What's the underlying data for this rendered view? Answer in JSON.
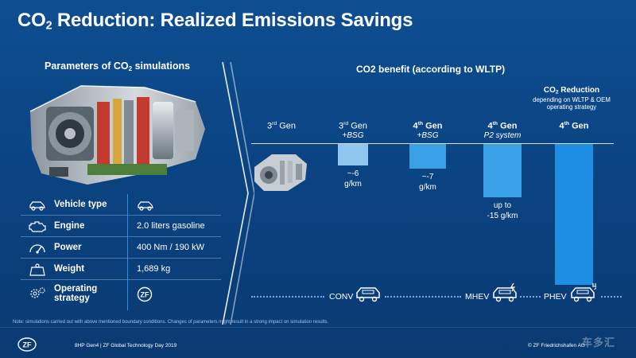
{
  "slide": {
    "title_main": "CO",
    "title_sub": "2",
    "title_rest": " Reduction: Realized Emissions Savings"
  },
  "left": {
    "title_main": "Parameters of CO",
    "title_sub": "2",
    "title_rest": " simulations",
    "params": [
      {
        "label": "Vehicle type",
        "value": "",
        "icon": "car-outline-icon"
      },
      {
        "label": "Engine",
        "value": "2.0 liters gasoline",
        "icon": "engine-icon"
      },
      {
        "label": "Power",
        "value": "400 Nm / 190 kW",
        "icon": "gauge-icon"
      },
      {
        "label": "Weight",
        "value": "1,689 kg",
        "icon": "weight-icon"
      },
      {
        "label": "Operating strategy",
        "value": "",
        "icon": "gears-icon"
      }
    ]
  },
  "chart": {
    "title": "CO2 benefit (according to WLTP)",
    "reduction_title_main": "CO",
    "reduction_title_sub": "2",
    "reduction_title_rest": " Reduction",
    "reduction_subtitle": "depending on WLTP & OEM operating strategy",
    "columns": [
      {
        "gen": "3",
        "sup": "rd",
        "word": " Gen",
        "sub": "",
        "bold": false
      },
      {
        "gen": "3",
        "sup": "rd",
        "word": " Gen",
        "sub": "+BSG",
        "bold": false
      },
      {
        "gen": "4",
        "sup": "th",
        "word": " Gen",
        "sub": "+BSG",
        "bold": true
      },
      {
        "gen": "4",
        "sup": "th",
        "word": " Gen",
        "sub": "P2 system",
        "bold": true
      },
      {
        "gen": "4",
        "sup": "th",
        "word": " Gen",
        "sub": "",
        "bold": true
      }
    ],
    "bar_labels": [
      "~-6\ng/km",
      "~-7\ng/km",
      "up to\n-15 g/km"
    ],
    "categories": [
      "CONV",
      "MHEV",
      "PHEV"
    ],
    "colors": {
      "bar_light": "#8ec6ee",
      "bar_mid": "#3aa0e6",
      "bar_dark": "#1e8fe2",
      "accent": "#2d8ee8"
    }
  },
  "chart_data": {
    "type": "bar",
    "categories": [
      "3rd Gen",
      "3rd Gen +BSG",
      "4th Gen +BSG",
      "4th Gen P2 system",
      "4th Gen"
    ],
    "values": [
      0,
      -6,
      -7,
      -15,
      null
    ],
    "title": "CO2 benefit (according to WLTP)",
    "xlabel": "",
    "ylabel": "",
    "annotations": [
      "~-6 g/km",
      "~-7 g/km",
      "up to -15 g/km"
    ]
  },
  "footer": {
    "note": "Note: simulations carried out with above mentioned boundary conditions. Changes of parameters might result in a strong impact on simulation results.",
    "left": "8HP Gen4 | ZF Global Technology Day 2019",
    "right": "© ZF Friedrichshafen AG",
    "watermark": "车多汇",
    "logo_text": "ZF"
  }
}
